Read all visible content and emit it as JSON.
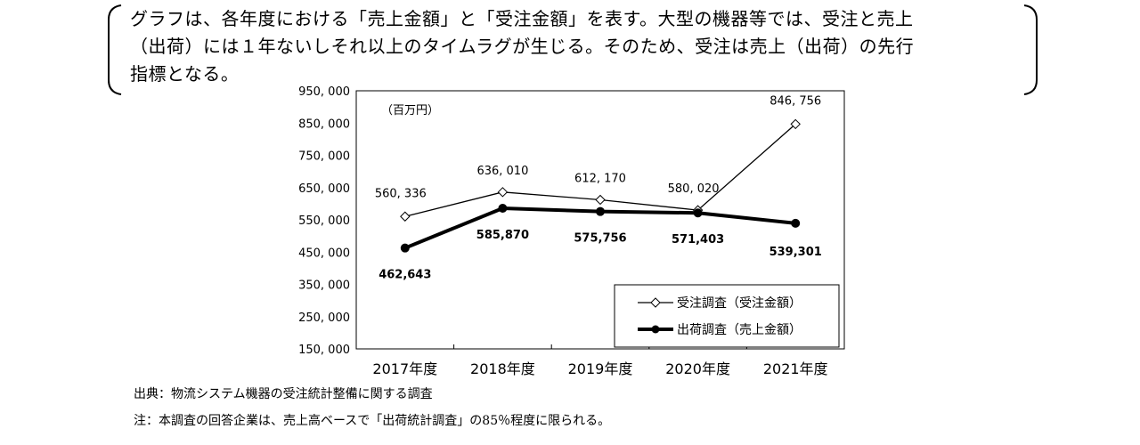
{
  "callout": {
    "lines": [
      "グラフは、各年度における「売上金額」と「受注金額」を表す。大型の機器等では、受注と売上",
      "（出荷）には１年ないしそれ以上のタイムラグが生じる。そのため、受注は売上（出荷）の先行",
      "指標となる。"
    ]
  },
  "chart_data": {
    "type": "line",
    "unit_label": "（百万円）",
    "categories": [
      "2017年度",
      "2018年度",
      "2019年度",
      "2020年度",
      "2021年度"
    ],
    "ylim": [
      150000,
      950000
    ],
    "yticks": [
      150000,
      250000,
      350000,
      450000,
      550000,
      650000,
      750000,
      850000,
      950000
    ],
    "ytick_labels": [
      "150, 000",
      "250, 000",
      "350, 000",
      "450, 000",
      "550, 000",
      "650, 000",
      "750, 000",
      "850, 000",
      "950, 000"
    ],
    "legend_position": "bottom-right",
    "series": [
      {
        "name": "受注調査（受注金額）",
        "values": [
          560336,
          636010,
          612170,
          580020,
          846756
        ],
        "labels": [
          "560, 336",
          "636, 010",
          "612, 170",
          "580, 020",
          "846, 756"
        ],
        "marker": "diamond-open",
        "color": "#000000"
      },
      {
        "name": "出荷調査（売上金額）",
        "values": [
          462643,
          585870,
          575756,
          571403,
          539301
        ],
        "labels": [
          "462,643",
          "585,870",
          "575,756",
          "571,403",
          "539,301"
        ],
        "marker": "circle-filled",
        "color": "#000000"
      }
    ]
  },
  "source": "出典：物流システム機器の受注統計整備に関する調査",
  "note": "注：本調査の回答企業は、売上高ベースで「出荷統計調査」の85％程度に限られる。"
}
